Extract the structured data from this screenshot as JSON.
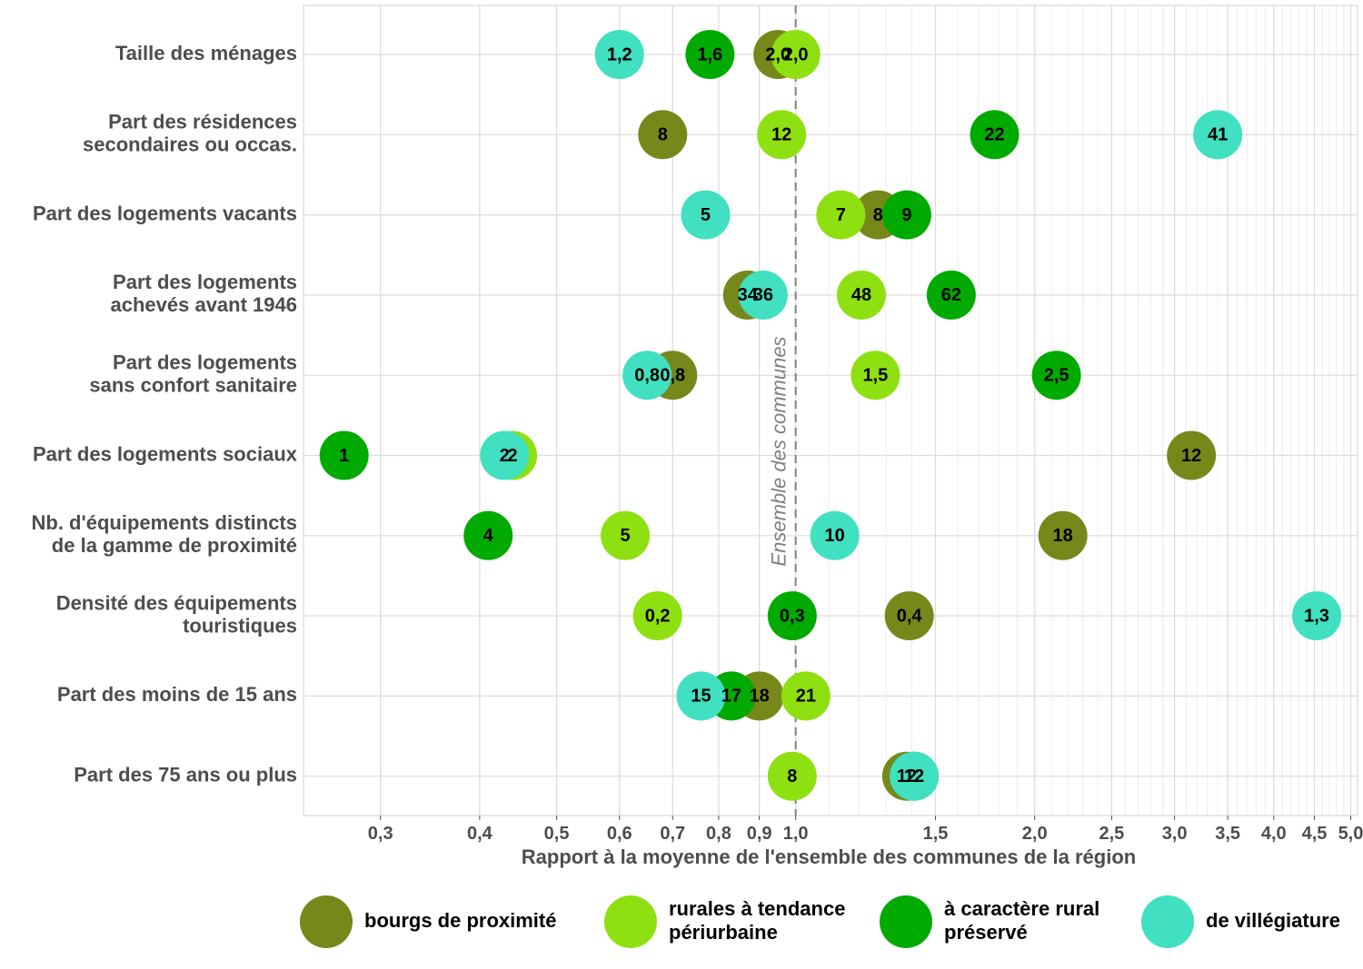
{
  "chart_data": {
    "type": "scatter",
    "title": "",
    "xlabel": "Rapport à la moyenne de l'ensemble des communes de la région",
    "ylabel": "",
    "x_scale": "log",
    "xlim": [
      0.24,
      5.1
    ],
    "x_ticks": [
      0.3,
      0.4,
      0.5,
      0.6,
      0.7,
      0.8,
      0.9,
      1.0,
      1.5,
      2.0,
      2.5,
      3.0,
      3.5,
      4.0,
      4.5,
      5.0
    ],
    "x_tick_labels": [
      "0,3",
      "0,4",
      "0,5",
      "0,6",
      "0,7",
      "0,8",
      "0,9",
      "1,0",
      "1,5",
      "2,0",
      "2,5",
      "3,0",
      "3,5",
      "4,0",
      "4,5",
      "5,0"
    ],
    "reference_line": {
      "x": 1.0,
      "label": "Ensemble des communes",
      "style": "dashed"
    },
    "grid": true,
    "legend_position": "bottom",
    "categories": [
      "Taille des ménages",
      "Part des résidences\nsecondaires ou occas.",
      "Part des logements vacants",
      "Part des logements\nachevés avant 1946",
      "Part des logements\nsans confort sanitaire",
      "Part des logements sociaux",
      "Nb. d'équipements distincts\nde la gamme de proximité",
      "Densité des équipements\ntouristiques",
      "Part des moins de 15 ans",
      "Part des 75 ans ou plus"
    ],
    "series": [
      {
        "name": "bourgs de proximité",
        "color": "#76881a",
        "x": [
          0.95,
          0.68,
          1.27,
          0.87,
          0.7,
          3.15,
          2.17,
          1.39,
          0.9,
          1.38
        ],
        "labels": [
          "2,0",
          "8",
          "8",
          "34",
          "0,8",
          "12",
          "18",
          "0,4",
          "18",
          "12"
        ]
      },
      {
        "name": "rurales à tendance\npériurbaine",
        "color": "#8ee010",
        "x": [
          1.0,
          0.96,
          1.14,
          1.21,
          1.26,
          0.44,
          0.61,
          0.67,
          1.03,
          0.99
        ],
        "labels": [
          "2,0",
          "12",
          "7",
          "48",
          "1,5",
          "2",
          "5",
          "0,2",
          "21",
          "8"
        ]
      },
      {
        "name": "à caractère rural\npréservé",
        "color": "#00aa00",
        "x": [
          0.78,
          1.78,
          1.38,
          1.57,
          2.13,
          0.27,
          0.41,
          0.99,
          0.83,
          1.41
        ],
        "labels": [
          "1,6",
          "22",
          "9",
          "62",
          "2,5",
          "1",
          "4",
          "0,3",
          "17",
          "12"
        ]
      },
      {
        "name": "de villégiature",
        "color": "#40e0c0",
        "x": [
          0.6,
          3.4,
          0.77,
          0.91,
          0.65,
          0.43,
          1.12,
          4.53,
          0.76,
          1.41
        ],
        "labels": [
          "1,2",
          "41",
          "5",
          "36",
          "0,8",
          "2",
          "10",
          "1,3",
          "15",
          "12"
        ]
      }
    ]
  }
}
